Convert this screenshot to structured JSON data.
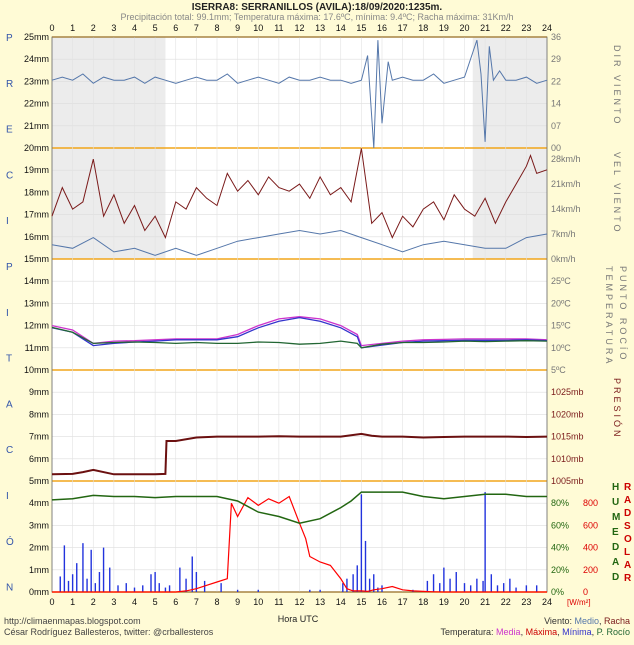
{
  "chart_data": {
    "type": "line",
    "title": "ISERRA8: SERRANILLOS (AVILA):18/09/2020:1235m.",
    "subtitle": "Precipitación total: 99.1mm; Temperatura máxima: 17.6ºC, mínima: 9.4ºC; Racha máxima: 31Km/h",
    "x_label": "Hora UTC",
    "x_ticks": [
      "0",
      "1",
      "2",
      "3",
      "4",
      "5",
      "6",
      "7",
      "8",
      "9",
      "10",
      "11",
      "12",
      "13",
      "14",
      "15",
      "16",
      "17",
      "18",
      "19",
      "20",
      "21",
      "22",
      "23",
      "24"
    ],
    "left_axis_labels": [
      "25mm",
      "24mm",
      "23mm",
      "22mm",
      "21mm",
      "20mm",
      "19mm",
      "18mm",
      "17mm",
      "16mm",
      "15mm",
      "14mm",
      "13mm",
      "12mm",
      "11mm",
      "10mm",
      "9mm",
      "8mm",
      "7mm",
      "6mm",
      "5mm",
      "4mm",
      "3mm",
      "2mm",
      "1mm",
      "0mm"
    ],
    "left_letters": [
      "P",
      "R",
      "E",
      "C",
      "I",
      "P",
      "I",
      "T",
      "A",
      "C",
      "I",
      "Ó",
      "N"
    ],
    "wind_dir": {
      "ticks": [
        "36",
        "29",
        "22",
        "14",
        "07",
        "00"
      ],
      "title": "DIR VIENTO",
      "x": [
        0,
        0.5,
        1,
        1.5,
        2,
        2.5,
        3,
        3.5,
        4,
        4.5,
        5,
        5.5,
        6,
        6.5,
        7,
        7.5,
        8,
        8.5,
        9,
        9.5,
        10,
        10.5,
        11,
        11.5,
        12,
        12.5,
        13,
        13.5,
        14,
        14.5,
        15,
        15.3,
        15.6,
        15.8,
        16,
        16.3,
        16.5,
        17,
        17.5,
        18,
        18.5,
        19,
        19.5,
        20,
        20.3,
        20.6,
        20.8,
        21,
        21.2,
        21.4,
        21.7,
        22,
        22.5,
        23,
        23.5,
        24
      ],
      "y": [
        22,
        23,
        22,
        24,
        21,
        23,
        22,
        22,
        23,
        21,
        23,
        22,
        21,
        22,
        23,
        22,
        22,
        24,
        21,
        22,
        23,
        22,
        21,
        23,
        22,
        22,
        23,
        22,
        22,
        21,
        22,
        30,
        0,
        35,
        8,
        28,
        22,
        23,
        22,
        22,
        24,
        21,
        22,
        23,
        29,
        35,
        24,
        2,
        33,
        22,
        25,
        22,
        22,
        23,
        21,
        22
      ]
    },
    "wind_speed": {
      "ticks": [
        "28km/h",
        "21km/h",
        "14km/h",
        "7km/h",
        "0km/h"
      ],
      "title": "VEL VIENTO",
      "series": [
        {
          "name": "Medio",
          "color": "#5577aa",
          "x": [
            0,
            1,
            2,
            3,
            4,
            5,
            6,
            7,
            8,
            9,
            10,
            11,
            12,
            13,
            14,
            15,
            16,
            17,
            18,
            19,
            20,
            21,
            22,
            23,
            24
          ],
          "y": [
            4,
            3,
            6,
            2,
            3,
            1,
            3,
            1,
            3,
            5,
            6,
            7,
            8,
            7,
            8,
            6,
            4,
            2,
            4,
            5,
            4,
            3,
            3,
            6,
            7
          ]
        },
        {
          "name": "Racha",
          "color": "#7a1a1a",
          "x": [
            0,
            0.5,
            1,
            1.5,
            2,
            2.5,
            3,
            3.5,
            4,
            4.5,
            5,
            5.5,
            6,
            6.5,
            7,
            7.5,
            8,
            8.5,
            9,
            9.5,
            10,
            10.5,
            11,
            11.5,
            12,
            12.5,
            13,
            13.5,
            14,
            14.5,
            15,
            15.5,
            16,
            16.5,
            17,
            17.5,
            18,
            18.5,
            19,
            19.5,
            20,
            20.5,
            21,
            21.5,
            22,
            22.5,
            23,
            23.2,
            23.5,
            24
          ],
          "y": [
            12,
            20,
            14,
            16,
            28,
            12,
            18,
            10,
            15,
            8,
            12,
            6,
            16,
            14,
            20,
            17,
            15,
            24,
            19,
            22,
            18,
            23,
            20,
            19,
            21,
            17,
            23,
            18,
            20,
            16,
            31,
            10,
            13,
            6,
            12,
            9,
            14,
            16,
            11,
            18,
            14,
            12,
            17,
            10,
            16,
            21,
            26,
            29,
            24,
            25
          ]
        }
      ]
    },
    "temperature": {
      "ticks": [
        "25ºC",
        "20ºC",
        "15ºC",
        "10ºC",
        "5ºC"
      ],
      "title": "TEMPERATURA PUNTO ROCÍO",
      "series": [
        {
          "name": "Media",
          "color": "#cc33cc",
          "x": [
            0,
            1,
            2,
            3,
            4,
            5,
            6,
            7,
            8,
            9,
            10,
            11,
            12,
            13,
            14,
            14.8,
            15,
            16,
            17,
            18,
            19,
            20,
            21,
            22,
            23,
            24
          ],
          "y": [
            15,
            14,
            11,
            11.5,
            11.6,
            11.8,
            12,
            12,
            12,
            13,
            15,
            16.5,
            17,
            16.5,
            15,
            13,
            10.5,
            11,
            11.5,
            11.8,
            11.9,
            12,
            12,
            12,
            12,
            11.8
          ]
        },
        {
          "name": "Mínima",
          "color": "#3333cc",
          "x": [
            0,
            1,
            2,
            3,
            4,
            5,
            6,
            7,
            8,
            9,
            10,
            11,
            12,
            13,
            14,
            14.8,
            15,
            16,
            17,
            18,
            19,
            20,
            21,
            22,
            23,
            24
          ],
          "y": [
            14.5,
            13.5,
            10.5,
            11,
            11.3,
            11.5,
            11.8,
            11.8,
            11.8,
            12.5,
            14.5,
            16,
            16.8,
            16,
            14.5,
            12.5,
            10,
            10.6,
            11.2,
            11.5,
            11.6,
            11.7,
            11.7,
            11.7,
            11.8,
            11.6
          ]
        },
        {
          "name": "Rocío",
          "color": "#226633",
          "x": [
            0,
            1,
            2,
            3,
            4,
            5,
            6,
            7,
            8,
            9,
            10,
            11,
            12,
            13,
            14,
            14.8,
            15,
            16,
            17,
            18,
            19,
            20,
            21,
            22,
            23,
            24
          ],
          "y": [
            14.6,
            13.5,
            11,
            11.2,
            11.3,
            11.2,
            11,
            11.2,
            11,
            11,
            11.3,
            11.2,
            10.8,
            11,
            11.5,
            11,
            10,
            10.8,
            11.2,
            11.2,
            11.3,
            11.5,
            11.4,
            11.5,
            11.6,
            11.5
          ]
        }
      ]
    },
    "pressure": {
      "ticks": [
        "1025mb",
        "1020mb",
        "1015mb",
        "1010mb",
        "1005mb"
      ],
      "title": "PRESIÓN",
      "x": [
        0,
        1,
        1.5,
        2,
        3,
        4,
        5,
        5.5,
        5.55,
        6,
        7,
        8,
        9,
        10,
        11,
        12,
        13,
        14,
        15,
        15.5,
        16,
        17,
        18,
        19,
        20,
        21,
        22,
        23,
        24
      ],
      "y": [
        1006.5,
        1006.6,
        1007,
        1007.5,
        1006.5,
        1006.5,
        1006.5,
        1006.6,
        1014,
        1014,
        1014.8,
        1015,
        1015,
        1015,
        1015.1,
        1015,
        1015,
        1015,
        1015.6,
        1015.2,
        1015,
        1015,
        1014.8,
        1014.9,
        1015,
        1015,
        1015,
        1014.9,
        1015
      ]
    },
    "humidity": {
      "ticks": [
        "80%",
        "60%",
        "40%",
        "20%",
        "0%"
      ],
      "title": "HUMEDAD",
      "color": "#226611",
      "x": [
        0,
        1,
        2,
        3,
        4,
        5,
        6,
        7,
        8,
        9,
        10,
        11,
        12,
        13,
        14,
        14.5,
        15,
        15.5,
        16,
        17,
        18,
        19,
        20,
        21,
        22,
        23,
        24
      ],
      "y": [
        83,
        84,
        87,
        86,
        86,
        85,
        86,
        86,
        86,
        82,
        72,
        68,
        62,
        66,
        76,
        82,
        90,
        90,
        90,
        90,
        86,
        84,
        86,
        88,
        88,
        86,
        86
      ]
    },
    "solar": {
      "ticks": [
        "800",
        "600",
        "400",
        "200",
        "0"
      ],
      "title": "RAD SOLAR",
      "unit": "[W/m²]",
      "color": "#ff0000",
      "x": [
        0,
        6,
        6.5,
        7,
        7.5,
        8,
        8.5,
        8.7,
        9,
        9.5,
        10,
        10.5,
        11,
        11.5,
        12,
        12.3,
        12.5,
        13,
        13.5,
        14,
        14.3,
        14.6,
        15,
        15.3,
        15.6,
        16,
        16.5,
        17,
        17.5,
        18,
        18.5,
        19,
        24
      ],
      "y": [
        0,
        0,
        10,
        30,
        60,
        90,
        120,
        800,
        680,
        850,
        780,
        840,
        800,
        860,
        620,
        480,
        320,
        270,
        240,
        120,
        30,
        10,
        10,
        5,
        20,
        30,
        50,
        20,
        10,
        5,
        2,
        0,
        0
      ]
    },
    "rain_bars": {
      "color": "#2233dd",
      "x": [
        0.4,
        0.6,
        0.8,
        1.0,
        1.2,
        1.5,
        1.7,
        1.9,
        2.1,
        2.3,
        2.5,
        2.8,
        3.2,
        3.6,
        4.0,
        4.4,
        4.8,
        5.0,
        5.2,
        5.5,
        5.7,
        6.2,
        6.5,
        6.8,
        7.0,
        7.4,
        8.2,
        9.0,
        10.0,
        12.5,
        13.0,
        14.1,
        14.3,
        14.6,
        14.8,
        15.0,
        15.2,
        15.4,
        15.6,
        15.8,
        16.0,
        17.5,
        18.2,
        18.5,
        18.8,
        19.0,
        19.3,
        19.6,
        20.0,
        20.3,
        20.6,
        20.9,
        21.0,
        21.3,
        21.6,
        21.9,
        22.2,
        22.5,
        23.0,
        23.5
      ],
      "mm": [
        0.7,
        2.1,
        0.5,
        0.8,
        1.3,
        2.2,
        0.6,
        1.9,
        0.4,
        0.9,
        2.0,
        1.1,
        0.3,
        0.4,
        0.2,
        0.3,
        0.8,
        0.9,
        0.4,
        0.2,
        0.3,
        1.1,
        0.6,
        1.6,
        0.9,
        0.5,
        0.4,
        0.1,
        0.1,
        0.1,
        0.1,
        0.4,
        0.6,
        0.8,
        1.2,
        4.4,
        2.3,
        0.6,
        0.8,
        0.2,
        0.3,
        0.1,
        0.5,
        0.8,
        0.4,
        1.1,
        0.6,
        0.9,
        0.4,
        0.3,
        0.6,
        0.5,
        4.5,
        0.8,
        0.3,
        0.4,
        0.6,
        0.2,
        0.3,
        0.3
      ]
    },
    "legend_wind": {
      "prefix": "Viento:",
      "items": [
        {
          "label": "Medio",
          "color": "#5577aa"
        },
        {
          "label": "Racha",
          "color": "#7a1a1a"
        }
      ]
    },
    "legend_temp": {
      "prefix": "Temperatura:",
      "items": [
        {
          "label": "Media",
          "color": "#cc33cc"
        },
        {
          "label": "Máxima",
          "color": "#cc0000"
        },
        {
          "label": "Mínima",
          "color": "#3333cc"
        },
        {
          "label": "P. Rocío",
          "color": "#226633"
        }
      ]
    },
    "footer_left": [
      "http://climaenmapas.blogspot.com",
      "César Rodríguez Ballesteros, twitter: @crballesteros"
    ]
  }
}
